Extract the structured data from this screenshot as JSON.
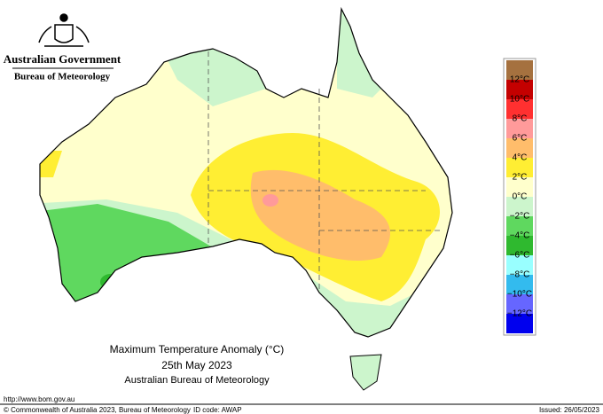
{
  "header": {
    "agency": "Australian Government",
    "bureau": "Bureau of Meteorology"
  },
  "map": {
    "title": "Maximum Temperature Anomaly (°C)",
    "date": "25th May 2023",
    "source": "Australian Bureau of Meteorology"
  },
  "legend": {
    "colors": [
      "#a5713f",
      "#c40000",
      "#ff3030",
      "#ff9a9a",
      "#ffbd6b",
      "#ffee33",
      "#ffffcc",
      "#ccf5cc",
      "#5fd85f",
      "#2fb92f",
      "#99ffff",
      "#33bbee",
      "#6666ff",
      "#0000ee"
    ],
    "labels": [
      "12°C",
      "10°C",
      "8°C",
      "6°C",
      "4°C",
      "2°C",
      "0°C",
      "−2°C",
      "−4°C",
      "−6°C",
      "−8°C",
      "−10°C",
      "−12°C"
    ]
  },
  "footer": {
    "url": "http://www.bom.gov.au",
    "copyright": "© Commonwealth of Australia 2023, Bureau of Meteorology",
    "id_code": "ID code: AWAP",
    "issued": "Issued: 26/05/2023"
  }
}
